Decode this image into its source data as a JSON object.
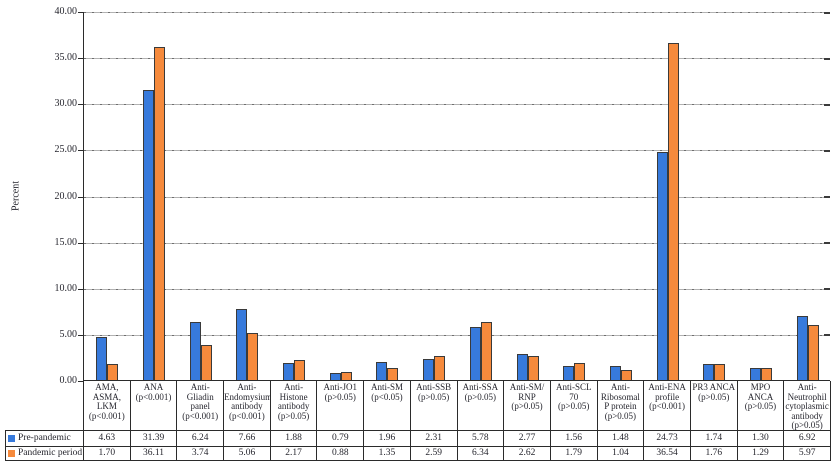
{
  "chart_data": {
    "type": "bar",
    "title": "",
    "xlabel": "",
    "ylabel": "Percent",
    "ylim": [
      0,
      40
    ],
    "ytick_step": 5,
    "ytick_labels": [
      "0.00",
      "5.00",
      "10.00",
      "15.00",
      "20.00",
      "25.00",
      "30.00",
      "35.00",
      "40.00"
    ],
    "grid": true,
    "legend_position": "bottom-left of data table",
    "value_decimals": 2,
    "categories": [
      "AMA,\nASMA,\nLKM\n(p<0.001)",
      "ANA\n(p<0.001)",
      "Anti-Gliadin\npanel\n(p<0.001)",
      "Anti-\nEndomysium\nantibody\n(p<0.001)",
      "Anti-Histone\nantibody\n(p>0.05)",
      "Anti-JO1\n(p>0.05)",
      "Anti-SM\n(p<0.05)",
      "Anti-SSB\n(p>0.05)",
      "Anti-SSA\n(p>0.05)",
      "Anti-SM/\nRNP\n(p>0.05)",
      "Anti-SCL 70\n(p>0.05)",
      "Anti-\nRibosomal\nP protein\n(p>0.05)",
      "Anti-ENA\nprofile\n(p<0.001)",
      "PR3 ANCA\n(p>0.05)",
      "MPO\nANCA\n(p>0.05)",
      "Anti-\nNeutrophil\ncytoplasmic\nantibody\n(p>0.05)"
    ],
    "series": [
      {
        "name": "Pre-pandemic",
        "color": "#377adc",
        "values": [
          4.63,
          31.39,
          6.24,
          7.66,
          1.88,
          0.79,
          1.96,
          2.31,
          5.78,
          2.77,
          1.56,
          1.48,
          24.73,
          1.74,
          1.3,
          6.92
        ]
      },
      {
        "name": "Pandemic period",
        "color": "#f68a3c",
        "values": [
          1.7,
          36.11,
          3.74,
          5.06,
          2.17,
          0.88,
          1.35,
          2.59,
          6.34,
          2.62,
          1.79,
          1.04,
          36.54,
          1.76,
          1.29,
          5.97
        ]
      }
    ]
  }
}
